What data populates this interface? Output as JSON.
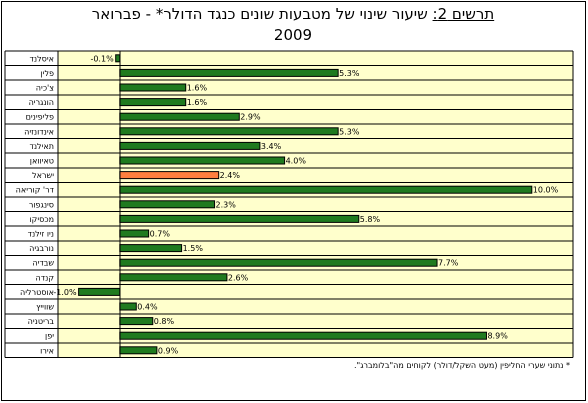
{
  "title": {
    "label": "תרשים 2:",
    "line1": " שיעור שינוי של מטבעות שונים כנגד הדולר* - פברואר",
    "line2": "2009"
  },
  "footnote": "* נתוני שערי החליפין (מעט השקל/דולר) לקוחים מה\"בלומברג\".",
  "colors": {
    "plot_bg": "#ffffcc",
    "bar": "#1f7a1f",
    "bar_highlight": "#ff7f3f",
    "grid": "#000000"
  },
  "chart_data": {
    "type": "bar",
    "orientation": "horizontal",
    "categories": [
      "איסלנד",
      "פלין",
      "צ'כיה",
      "הונגריה",
      "פליפינים",
      "אינדונזיה",
      "תאילנד",
      "טאיוואן",
      "ישראל",
      "דר' קוריאה",
      "סינגפור",
      "מכסיקו",
      "ניו זילנד",
      "נורבגיה",
      "שבדיה",
      "קנדה",
      "אוסטרליה",
      "שווייץ",
      "בריטניה",
      "יפן",
      "אירו"
    ],
    "values": [
      -0.1,
      5.3,
      1.6,
      1.6,
      2.9,
      5.3,
      3.4,
      4.0,
      2.4,
      10.0,
      2.3,
      5.8,
      0.7,
      1.5,
      7.7,
      2.6,
      -1.0,
      0.4,
      0.8,
      8.9,
      0.9
    ],
    "data_labels": [
      "-0.1%",
      "5.3%",
      "1.6%",
      "1.6%",
      "2.9%",
      "5.3%",
      "3.4%",
      "4.0%",
      "2.4%",
      "10.0%",
      "2.3%",
      "5.8%",
      "0.7%",
      "1.5%",
      "7.7%",
      "2.6%",
      "-1.0%",
      "0.4%",
      "0.8%",
      "8.9%",
      "0.9%"
    ],
    "highlight_category": "ישראל",
    "xlim": [
      -1.5,
      11.0
    ],
    "grid": true,
    "legend": "none"
  }
}
